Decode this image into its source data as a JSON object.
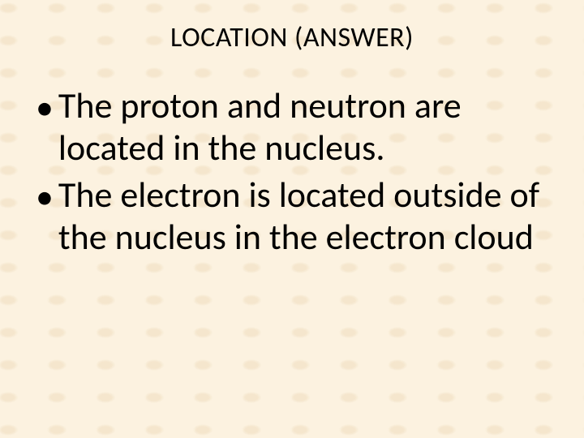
{
  "slide": {
    "title": "LOCATION (ANSWER)",
    "bullets": [
      "The proton and neutron are located in the nucleus.",
      "The electron is located outside of the nucleus in the electron cloud"
    ],
    "background_color": "#fcf2e0",
    "text_color": "#000000",
    "title_fontsize": 34,
    "body_fontsize": 44,
    "font_family": "Calibri"
  }
}
